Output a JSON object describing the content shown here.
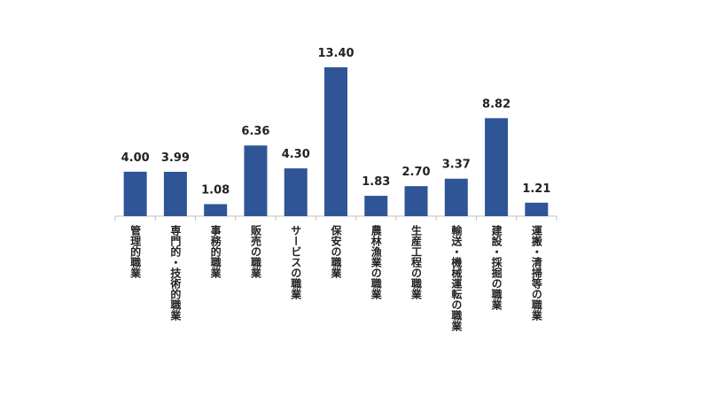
{
  "chart_data": {
    "type": "bar",
    "categories": [
      "管理的職業",
      "専門的・技術的職業",
      "事務的職業",
      "販売の職業",
      "サービスの職業",
      "保安の職業",
      "農林漁業の職業",
      "生産工程の職業",
      "輸送・機械運転の職業",
      "建設・採掘の職業",
      "運搬・清掃等の職業"
    ],
    "values": [
      4,
      3.99,
      1.08,
      6.36,
      4.3,
      13.4,
      1.83,
      2.7,
      3.37,
      8.82,
      1.21
    ],
    "value_labels": [
      "4.00",
      "3.99",
      "1.08",
      "6.36",
      "4.30",
      "13.40",
      "1.83",
      "2.70",
      "3.37",
      "8.82",
      "1.21"
    ],
    "color": "#2f5597"
  }
}
